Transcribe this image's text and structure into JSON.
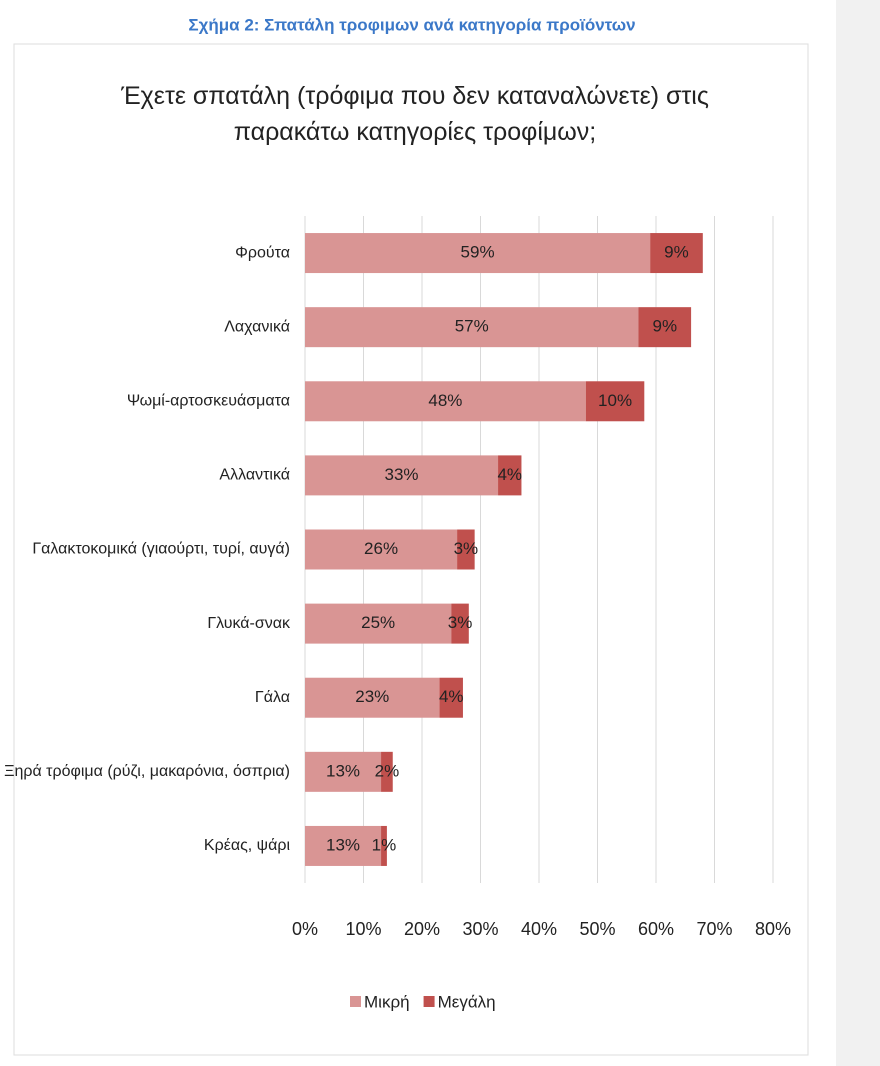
{
  "figure_caption": "Σχήμα 2: Σπατάλη τροφιμων ανά κατηγορία προϊόντων",
  "chart_data": {
    "type": "stacked-barh",
    "title": "Έχετε σπατάλη (τρόφιμα που δεν καταναλώνετε) στις παρακάτω κατηγορίες τροφίμων;",
    "categories": [
      "Φρούτα",
      "Λαχανικά",
      "Ψωμί-αρτοσκευάσματα",
      "Αλλαντικά",
      "Γαλακτοκομικά (γιαούρτι, τυρί, αυγά)",
      "Γλυκά-σνακ",
      "Γάλα",
      "Ξηρά τρόφιμα (ρύζι, μακαρόνια, όσπρια)",
      "Κρέας, ψάρι"
    ],
    "series": [
      {
        "name": "Μικρή",
        "color": "#d99594",
        "values": [
          59,
          57,
          48,
          33,
          26,
          25,
          23,
          13,
          13
        ],
        "value_labels": [
          "59%",
          "57%",
          "48%",
          "33%",
          "26%",
          "25%",
          "23%",
          "13%",
          "13%"
        ]
      },
      {
        "name": "Μεγάλη",
        "color": "#c0504d",
        "values": [
          9,
          9,
          10,
          4,
          3,
          3,
          4,
          2,
          1
        ],
        "value_labels": [
          "9%",
          "9%",
          "10%",
          "4%",
          "3%",
          "3%",
          "4%",
          "2%",
          "1%"
        ]
      }
    ],
    "xlim": [
      0,
      80
    ],
    "xticks": [
      {
        "value": 0,
        "label": "0%"
      },
      {
        "value": 10,
        "label": "10%"
      },
      {
        "value": 20,
        "label": "20%"
      },
      {
        "value": 30,
        "label": "30%"
      },
      {
        "value": 40,
        "label": "40%"
      },
      {
        "value": 50,
        "label": "50%"
      },
      {
        "value": 60,
        "label": "60%"
      },
      {
        "value": 70,
        "label": "70%"
      },
      {
        "value": 80,
        "label": "80%"
      }
    ],
    "grid": true,
    "legend": "bottom"
  }
}
